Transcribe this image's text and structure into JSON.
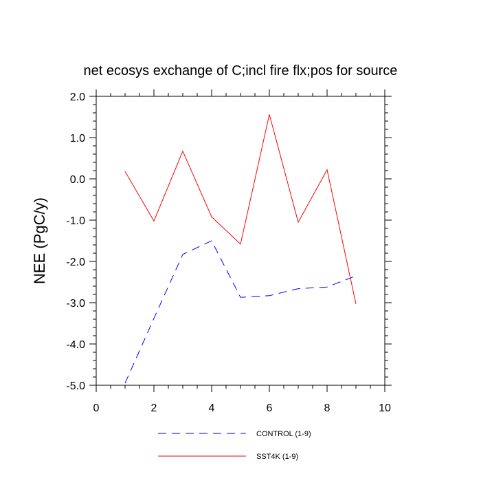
{
  "chart_data": {
    "type": "line",
    "title": "net ecosys exchange of C;incl fire flx;pos for source",
    "xlabel": "",
    "ylabel": "NEE  (PgC/y)",
    "xlim": [
      0,
      10
    ],
    "ylim": [
      -5.0,
      2.0
    ],
    "grid": false,
    "legend_position": "bottom",
    "x_ticks": [
      0,
      2,
      4,
      6,
      8,
      10
    ],
    "x_tick_labels": [
      "0",
      "2",
      "4",
      "6",
      "8",
      "10"
    ],
    "y_ticks": [
      -5.0,
      -4.0,
      -3.0,
      -2.0,
      -1.0,
      0.0,
      1.0,
      2.0
    ],
    "y_tick_labels": [
      "-5.0",
      "-4.0",
      "-3.0",
      "-2.0",
      "-1.0",
      "0.0",
      "1.0",
      "2.0"
    ],
    "series": [
      {
        "name": "CONTROL (1-9)",
        "color": "#0000ff",
        "style": "dashed",
        "x": [
          1,
          2,
          3,
          4,
          5,
          6,
          7,
          8,
          9
        ],
        "y": [
          -4.95,
          -3.38,
          -1.83,
          -1.5,
          -2.87,
          -2.83,
          -2.66,
          -2.62,
          -2.35
        ]
      },
      {
        "name": "SST4K (1-9)",
        "color": "#ff0000",
        "style": "solid",
        "x": [
          1,
          2,
          3,
          4,
          5,
          6,
          7,
          8,
          9
        ],
        "y": [
          0.18,
          -1.02,
          0.67,
          -0.92,
          -1.58,
          1.56,
          -1.05,
          0.22,
          -3.03
        ]
      }
    ]
  }
}
